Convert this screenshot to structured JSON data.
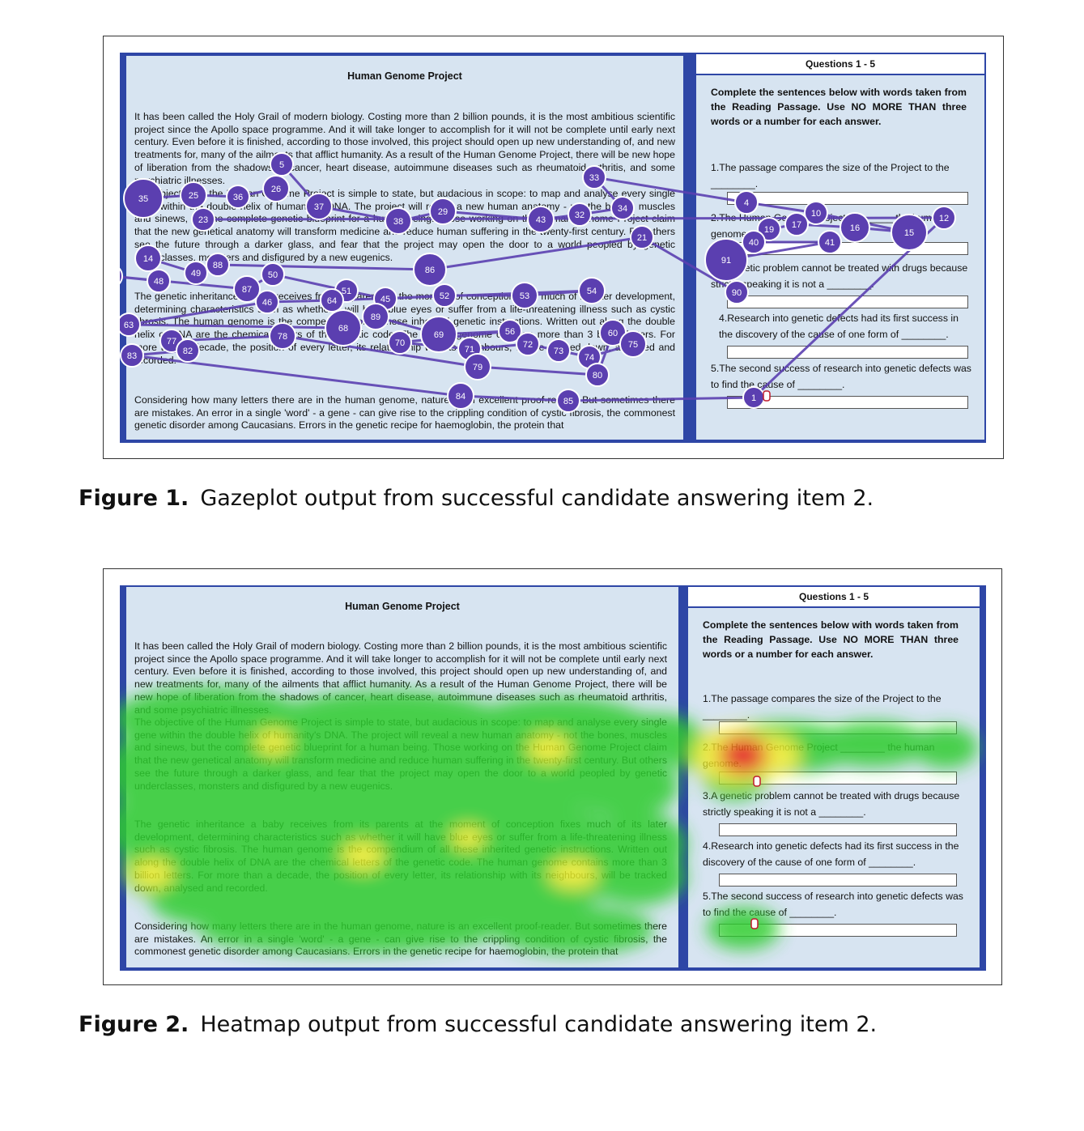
{
  "figures": [
    {
      "id": "fig1",
      "label": "Figure 1.",
      "caption": "Gazeplot output from successful candidate answering item 2.",
      "screen": {
        "passage_title": "Human Genome Project",
        "paragraphs": [
          "It has been called the Holy Grail of modern biology. Costing more than 2 billion pounds, it is the most ambitious scientific project since the Apollo space programme. And it will take longer to accomplish for it will not be complete until early next century. Even before it is finished, according to those involved, this project should open up new understanding of, and new treatments for, many of the ailments that afflict humanity. As a result of the Human Genome Project, there will be new hope of liberation from the shadows of cancer, heart disease, autoimmune diseases such as rheumatoid arthritis, and some psychiatric illnesses.",
          "The objective of the Human Genome Project is simple to state, but audacious in scope: to map and analyse every single gene within the double helix of humanity's DNA. The project will reveal a new human anatomy - not the bones, muscles and sinews, but the complete genetic blueprint for a human being. Those working on the Human Genome Project claim that the new genetical anatomy will transform medicine and reduce human suffering in the twenty-first century. But others see the future through a darker glass, and fear that the project may open the door to a world peopled by genetic underclasses, monsters and disfigured by a new eugenics.",
          "The genetic inheritance a baby receives from its parents at the moment of conception fixes much of its later development, determining characteristics such as whether it will have blue eyes or suffer from a life-threatening illness such as cystic fibrosis. The human genome is the compendium of all these inherited genetic instructions. Written out along the double helix of DNA are the chemical letters of the genetic code. The human genome contains more than 3 billion letters. For more than a decade, the position of every letter, its relationship with its neighbours, will be tracked down, analysed and recorded.",
          "Considering how many letters there are in the human genome, nature is an excellent proof-reader. But sometimes there are mistakes. An error in a single 'word' - a gene - can give rise to the crippling condition of cystic fibrosis, the commonest genetic disorder among Caucasians. Errors in the genetic recipe for haemoglobin, the protein that"
        ],
        "questions_header": "Questions 1 - 5",
        "instructions": "Complete the sentences below with words taken from the Reading Passage. Use NO MORE THAN three words or a number for each answer.",
        "questions": [
          "1.The passage compares the size of the Project to the ________.",
          "2.The Human Genome Project ________ the human genome.",
          "3.A genetic problem cannot be treated with drugs because strictly speaking it is not a ________.",
          "4.Research into genetic defects had its first success in the discovery of the cause of one form of ________.",
          "5.The second success of research into genetic defects was to find the cause of ________."
        ]
      },
      "fixation_labels": [
        "1",
        "4",
        "5",
        "10",
        "12",
        "14",
        "15",
        "16",
        "17",
        "19",
        "21",
        "23",
        "25",
        "26",
        "29",
        "32",
        "33",
        "34",
        "35",
        "36",
        "37",
        "38",
        "40",
        "41",
        "43",
        "45",
        "46",
        "47",
        "48",
        "49",
        "50",
        "51",
        "52",
        "53",
        "54",
        "56",
        "60",
        "63",
        "64",
        "68",
        "69",
        "70",
        "71",
        "72",
        "73",
        "74",
        "75",
        "77",
        "78",
        "79",
        "80",
        "82",
        "83",
        "84",
        "85",
        "86",
        "87",
        "88",
        "89",
        "90",
        "91"
      ],
      "colors": {
        "fixation": "#5b3fb0",
        "saccade": "#5b3fb0",
        "screen_border": "#2e46a6",
        "panel": "#d7e4f1"
      }
    },
    {
      "id": "fig2",
      "label": "Figure 2.",
      "caption": "Heatmap output from successful candidate answering item 2.",
      "heat_colors": {
        "low": "#2ecc2e",
        "mid": "#f2ee2a",
        "high": "#e81c14"
      }
    }
  ]
}
